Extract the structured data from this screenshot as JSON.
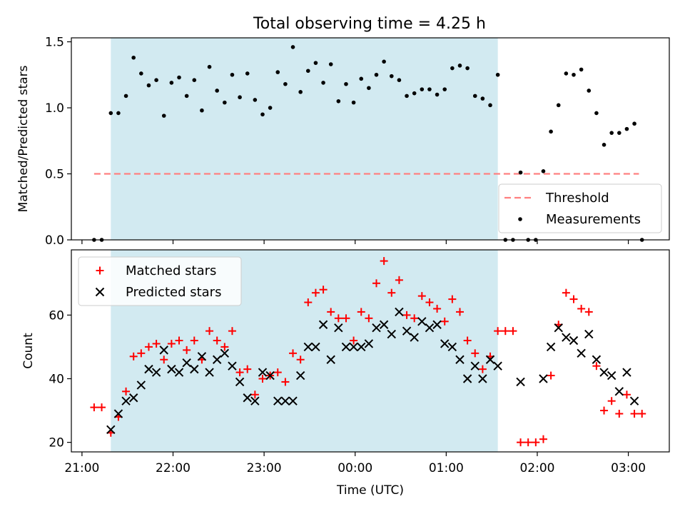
{
  "figure": {
    "title": "Total observing time = 4.25 h"
  },
  "chart_data": [
    {
      "type": "scatter",
      "panel": "top",
      "ylabel": "Matched/Predicted stars",
      "xlim": [
        "20:53",
        "03:27"
      ],
      "ylim": [
        0,
        1.53
      ],
      "yticks": [
        0.0,
        0.5,
        1.0,
        1.5
      ],
      "ytick_labels": [
        "0.0",
        "0.5",
        "1.0",
        "1.5"
      ],
      "shaded_region": {
        "start": "21:19",
        "end": "01:34",
        "color": "#add8e6"
      },
      "threshold": {
        "name": "Threshold",
        "value": 0.5,
        "x_start": "21:08",
        "x_end": "03:07",
        "color": "#ff8080",
        "style": "dashed"
      },
      "legend": {
        "location": "lower right",
        "entries": [
          "Threshold",
          "Measurements"
        ]
      },
      "series": [
        {
          "name": "Measurements",
          "color": "#000000",
          "marker": "dot",
          "x": [
            "21:08",
            "21:13",
            "21:19",
            "21:24",
            "21:29",
            "21:34",
            "21:39",
            "21:44",
            "21:49",
            "21:54",
            "21:59",
            "22:04",
            "22:09",
            "22:14",
            "22:19",
            "22:24",
            "22:29",
            "22:34",
            "22:39",
            "22:44",
            "22:49",
            "22:54",
            "22:59",
            "23:04",
            "23:09",
            "23:14",
            "23:19",
            "23:24",
            "23:29",
            "23:34",
            "23:39",
            "23:44",
            "23:49",
            "23:54",
            "23:59",
            "00:04",
            "00:09",
            "00:14",
            "00:19",
            "00:24",
            "00:29",
            "00:34",
            "00:39",
            "00:44",
            "00:49",
            "00:54",
            "00:59",
            "01:04",
            "01:09",
            "01:14",
            "01:19",
            "01:24",
            "01:29",
            "01:34",
            "01:39",
            "01:44",
            "01:49",
            "01:54",
            "01:59",
            "02:04",
            "02:09",
            "02:14",
            "02:19",
            "02:24",
            "02:29",
            "02:34",
            "02:39",
            "02:44",
            "02:49",
            "02:54",
            "02:59",
            "03:04",
            "03:09"
          ],
          "y": [
            0.0,
            0.0,
            0.96,
            0.96,
            1.09,
            1.38,
            1.26,
            1.17,
            1.21,
            0.94,
            1.19,
            1.23,
            1.09,
            1.21,
            0.98,
            1.31,
            1.13,
            1.04,
            1.25,
            1.08,
            1.26,
            1.06,
            0.95,
            1.0,
            1.27,
            1.18,
            1.46,
            1.12,
            1.28,
            1.34,
            1.19,
            1.33,
            1.05,
            1.18,
            1.04,
            1.22,
            1.15,
            1.25,
            1.35,
            1.24,
            1.21,
            1.09,
            1.11,
            1.14,
            1.14,
            1.1,
            1.14,
            1.3,
            1.32,
            1.3,
            1.09,
            1.07,
            1.02,
            1.25,
            0.0,
            0.0,
            0.51,
            0.0,
            0.0,
            0.52,
            0.82,
            1.02,
            1.26,
            1.25,
            1.29,
            1.13,
            0.96,
            0.72,
            0.81,
            0.81,
            0.84,
            0.88,
            0.0
          ]
        }
      ]
    },
    {
      "type": "scatter",
      "panel": "bottom",
      "xlabel": "Time (UTC)",
      "ylabel": "Count",
      "xlim": [
        "20:53",
        "03:27"
      ],
      "ylim": [
        17,
        80.5
      ],
      "xticks": [
        "21:00",
        "22:00",
        "23:00",
        "00:00",
        "01:00",
        "02:00",
        "03:00"
      ],
      "xtick_labels": [
        "21:00",
        "22:00",
        "23:00",
        "00:00",
        "01:00",
        "02:00",
        "03:00"
      ],
      "yticks": [
        20,
        40,
        60
      ],
      "ytick_labels": [
        "20",
        "40",
        "60"
      ],
      "shaded_region": {
        "start": "21:19",
        "end": "01:34",
        "color": "#add8e6"
      },
      "legend": {
        "location": "upper left",
        "entries": [
          "Matched stars",
          "Predicted stars"
        ]
      },
      "x": [
        "21:08",
        "21:13",
        "21:19",
        "21:24",
        "21:29",
        "21:34",
        "21:39",
        "21:44",
        "21:49",
        "21:54",
        "21:59",
        "22:04",
        "22:09",
        "22:14",
        "22:19",
        "22:24",
        "22:29",
        "22:34",
        "22:39",
        "22:44",
        "22:49",
        "22:54",
        "22:59",
        "23:04",
        "23:09",
        "23:14",
        "23:19",
        "23:24",
        "23:29",
        "23:34",
        "23:39",
        "23:44",
        "23:49",
        "23:54",
        "23:59",
        "00:04",
        "00:09",
        "00:14",
        "00:19",
        "00:24",
        "00:29",
        "00:34",
        "00:39",
        "00:44",
        "00:49",
        "00:54",
        "00:59",
        "01:04",
        "01:09",
        "01:14",
        "01:19",
        "01:24",
        "01:29",
        "01:34",
        "01:39",
        "01:44",
        "01:49",
        "01:54",
        "01:59",
        "02:04",
        "02:09",
        "02:14",
        "02:19",
        "02:24",
        "02:29",
        "02:34",
        "02:39",
        "02:44",
        "02:49",
        "02:54",
        "02:59",
        "03:04",
        "03:09"
      ],
      "series": [
        {
          "name": "Matched stars",
          "color": "#ff0000",
          "marker": "plus",
          "y": [
            31,
            31,
            23,
            28,
            36,
            47,
            48,
            50,
            51,
            46,
            51,
            52,
            49,
            52,
            46,
            55,
            52,
            50,
            55,
            42,
            43,
            35,
            40,
            41,
            42,
            39,
            48,
            46,
            64,
            67,
            68,
            61,
            59,
            59,
            52,
            61,
            59,
            70,
            77,
            67,
            71,
            60,
            59,
            66,
            64,
            62,
            58,
            65,
            61,
            52,
            48,
            43,
            47,
            55,
            55,
            55,
            20,
            20,
            20,
            21,
            41,
            57,
            67,
            65,
            62,
            61,
            44,
            30,
            33,
            29,
            35,
            29,
            29
          ]
        },
        {
          "name": "Predicted stars",
          "color": "#000000",
          "marker": "x",
          "y": [
            null,
            null,
            24,
            29,
            33,
            34,
            38,
            43,
            42,
            49,
            43,
            42,
            45,
            43,
            47,
            42,
            46,
            48,
            44,
            39,
            34,
            33,
            42,
            41,
            33,
            33,
            33,
            41,
            50,
            50,
            57,
            46,
            56,
            50,
            50,
            50,
            51,
            56,
            57,
            54,
            61,
            55,
            53,
            58,
            56,
            57,
            51,
            50,
            46,
            40,
            44,
            40,
            46,
            44,
            null,
            null,
            39,
            null,
            null,
            40,
            50,
            56,
            53,
            52,
            48,
            54,
            46,
            42,
            41,
            36,
            42,
            33,
            null
          ]
        }
      ]
    }
  ]
}
